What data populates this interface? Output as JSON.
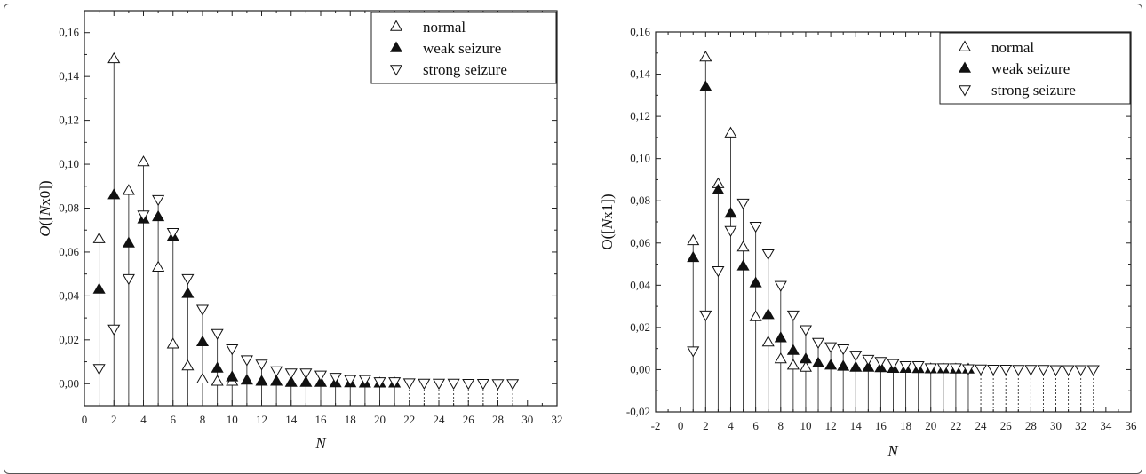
{
  "chart_data": [
    {
      "type": "scatter",
      "xlabel": "N",
      "ylabel_prefix": "O",
      "ylabel_rest": "([",
      "ylabel_n": "N",
      "ylabel_suffix": "x0])",
      "xlim": [
        0,
        32
      ],
      "ylim": [
        -0.01,
        0.17
      ],
      "xticks": [
        "0",
        "2",
        "4",
        "6",
        "8",
        "10",
        "12",
        "14",
        "16",
        "18",
        "20",
        "22",
        "24",
        "26",
        "28",
        "30",
        "32"
      ],
      "yticks": [
        "0,00",
        "0,02",
        "0,04",
        "0,06",
        "0,08",
        "0,10",
        "0,12",
        "0,14",
        "0,16"
      ],
      "legend_position": "top-right",
      "series": [
        {
          "name": "normal",
          "marker": "triangle-up-open",
          "x": [
            1,
            2,
            3,
            4,
            5,
            6,
            7,
            8,
            9,
            10
          ],
          "y": [
            0.066,
            0.148,
            0.088,
            0.101,
            0.053,
            0.018,
            0.008,
            0.002,
            0.001,
            0.001
          ]
        },
        {
          "name": "weak seizure",
          "marker": "triangle-up-filled",
          "x": [
            1,
            2,
            3,
            4,
            5,
            6,
            7,
            8,
            9,
            10,
            11,
            12,
            13,
            14,
            15,
            16,
            17,
            18,
            19,
            20,
            21
          ],
          "y": [
            0.043,
            0.086,
            0.064,
            0.075,
            0.076,
            0.067,
            0.041,
            0.019,
            0.007,
            0.003,
            0.0015,
            0.001,
            0.001,
            0.0005,
            0.0005,
            0.0005,
            0.0003,
            0.0003,
            0.0002,
            0.0002,
            0.0002
          ]
        },
        {
          "name": "strong seizure",
          "marker": "triangle-down-open",
          "x": [
            1,
            2,
            3,
            4,
            5,
            6,
            7,
            8,
            9,
            10,
            11,
            12,
            13,
            14,
            15,
            16,
            17,
            18,
            19,
            20,
            21,
            22,
            23,
            24,
            25,
            26,
            27,
            28,
            29
          ],
          "y": [
            0.007,
            0.025,
            0.048,
            0.077,
            0.084,
            0.069,
            0.048,
            0.034,
            0.023,
            0.016,
            0.011,
            0.009,
            0.006,
            0.005,
            0.005,
            0.004,
            0.003,
            0.002,
            0.002,
            0.001,
            0.001,
            0.0005,
            0.0003,
            0.0003,
            0.0003,
            0.0002,
            0.0002,
            0.0001,
            0.0001
          ]
        }
      ]
    },
    {
      "type": "scatter",
      "xlabel": "N",
      "ylabel_prefix": "O",
      "ylabel_rest": "([",
      "ylabel_n": "N",
      "ylabel_suffix": "x1])",
      "xlim": [
        -2,
        36
      ],
      "ylim": [
        -0.02,
        0.16
      ],
      "xticks": [
        "-2",
        "0",
        "2",
        "4",
        "6",
        "8",
        "10",
        "12",
        "14",
        "16",
        "18",
        "20",
        "22",
        "24",
        "26",
        "28",
        "30",
        "32",
        "34",
        "36"
      ],
      "yticks": [
        "-0,02",
        "0,00",
        "0,02",
        "0,04",
        "0,06",
        "0,08",
        "0,10",
        "0,12",
        "0,14",
        "0,16"
      ],
      "legend_position": "top-right",
      "series": [
        {
          "name": "normal",
          "marker": "triangle-up-open",
          "x": [
            1,
            2,
            3,
            4,
            5,
            6,
            7,
            8,
            9,
            10
          ],
          "y": [
            0.061,
            0.148,
            0.088,
            0.112,
            0.058,
            0.025,
            0.013,
            0.005,
            0.002,
            0.001
          ]
        },
        {
          "name": "weak seizure",
          "marker": "triangle-up-filled",
          "x": [
            1,
            2,
            3,
            4,
            5,
            6,
            7,
            8,
            9,
            10,
            11,
            12,
            13,
            14,
            15,
            16,
            17,
            18,
            19,
            20,
            21,
            22,
            23
          ],
          "y": [
            0.053,
            0.134,
            0.085,
            0.074,
            0.049,
            0.041,
            0.026,
            0.015,
            0.009,
            0.005,
            0.003,
            0.002,
            0.0015,
            0.001,
            0.001,
            0.0008,
            0.0005,
            0.0005,
            0.0004,
            0.0003,
            0.0003,
            0.0002,
            0.0002
          ]
        },
        {
          "name": "strong seizure",
          "marker": "triangle-down-open",
          "x": [
            1,
            2,
            3,
            4,
            5,
            6,
            7,
            8,
            9,
            10,
            11,
            12,
            13,
            14,
            15,
            16,
            17,
            18,
            19,
            20,
            21,
            22,
            23,
            24,
            25,
            26,
            27,
            28,
            29,
            30,
            31,
            32,
            33
          ],
          "y": [
            0.009,
            0.026,
            0.047,
            0.066,
            0.079,
            0.068,
            0.055,
            0.04,
            0.026,
            0.019,
            0.013,
            0.011,
            0.01,
            0.007,
            0.005,
            0.004,
            0.003,
            0.002,
            0.002,
            0.001,
            0.001,
            0.001,
            0.0005,
            0.0004,
            0.0003,
            0.0003,
            0.0002,
            0.0002,
            0.0002,
            0.0001,
            0.0001,
            0.0001,
            0.0001
          ]
        }
      ]
    }
  ]
}
